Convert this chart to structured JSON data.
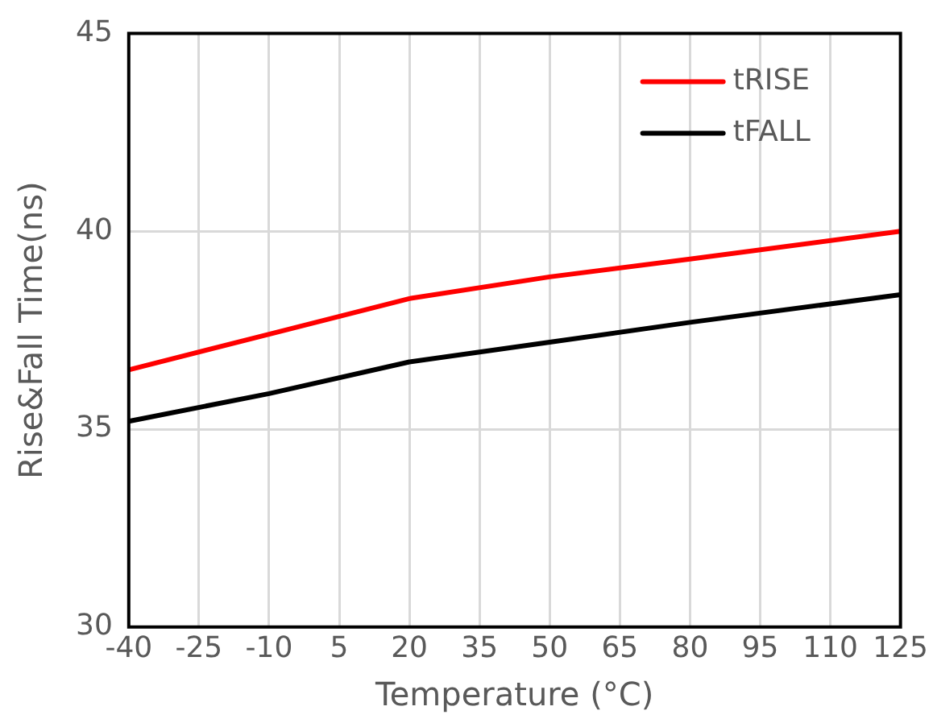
{
  "chart_data": {
    "type": "line",
    "xlabel": "Temperature (°C)",
    "ylabel": "Rise&Fall Time(ns)",
    "x": [
      -40,
      -10,
      20,
      50,
      80,
      125
    ],
    "series": [
      {
        "name": "tRISE",
        "color": "#ff0000",
        "values": [
          36.5,
          37.4,
          38.3,
          38.85,
          39.3,
          40
        ]
      },
      {
        "name": "tFALL",
        "color": "#000000",
        "values": [
          35.2,
          35.9,
          36.7,
          37.2,
          37.7,
          38.4
        ]
      }
    ],
    "xlim": [
      -40,
      125
    ],
    "xticks": [
      -40,
      -25,
      -10,
      5,
      20,
      35,
      50,
      65,
      80,
      95,
      110,
      125
    ],
    "ylim": [
      30,
      45
    ],
    "yticks": [
      30,
      35,
      40,
      45
    ],
    "grid": true,
    "legend": "top right",
    "marker": "none",
    "line_style": "solid"
  }
}
